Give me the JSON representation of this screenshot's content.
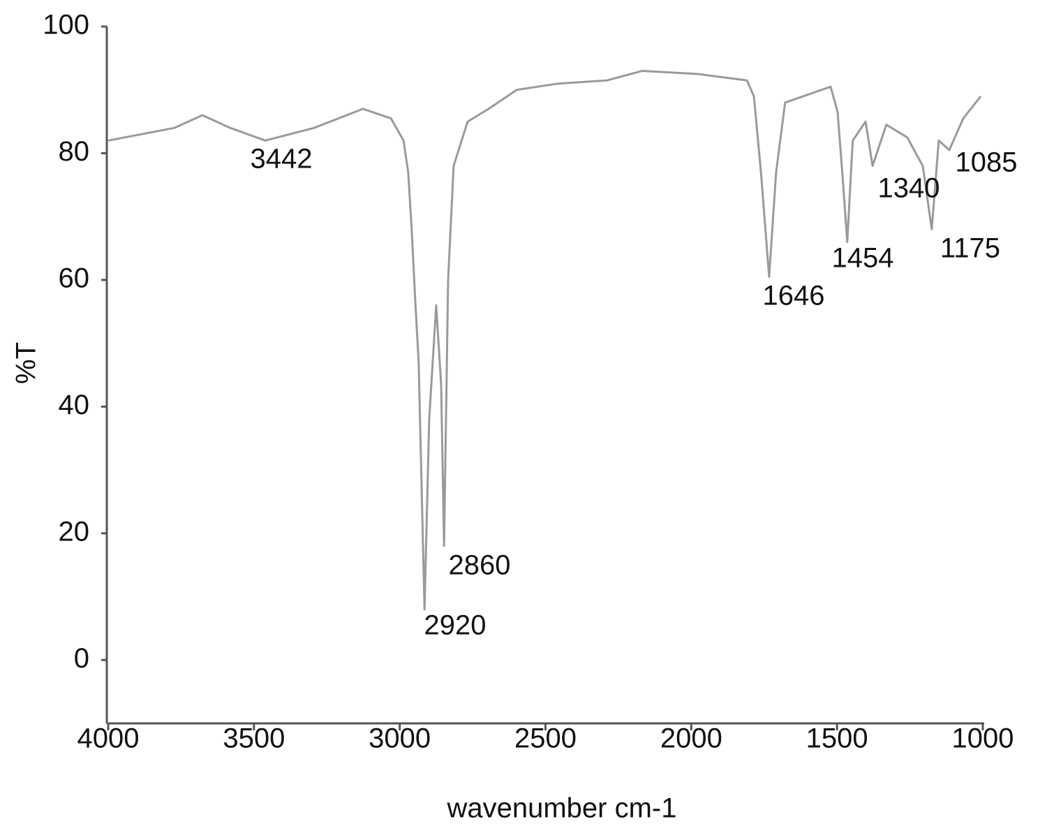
{
  "chart_data": {
    "type": "line",
    "x_label": "wavenumber cm-1",
    "y_label": "%T",
    "xlim": [
      4000,
      1000
    ],
    "ylim": [
      -10,
      100
    ],
    "xticks": [
      4000,
      3500,
      3000,
      2500,
      2000,
      1500,
      1000
    ],
    "yticks": [
      0,
      20,
      40,
      60,
      80,
      100
    ],
    "grid": false,
    "series": [
      {
        "color": "#9a9a9a",
        "x": [
          4000,
          3773,
          3677,
          3581,
          3461,
          3294,
          3126,
          3030,
          2987,
          2971,
          2959,
          2947,
          2935,
          2915,
          2899,
          2875,
          2858,
          2848,
          2834,
          2815,
          2767,
          2695,
          2599,
          2456,
          2288,
          2168,
          1977,
          1809,
          1785,
          1761,
          1733,
          1709,
          1678,
          1522,
          1498,
          1482,
          1465,
          1446,
          1402,
          1378,
          1331,
          1259,
          1206,
          1175,
          1151,
          1115,
          1067,
          1007
        ],
        "values": [
          82,
          84,
          86,
          84,
          82,
          84,
          87,
          85.5,
          82,
          77,
          68,
          57,
          47,
          8,
          38,
          56,
          43.5,
          18,
          60,
          78,
          85,
          87,
          90,
          91,
          91.5,
          93,
          92.5,
          91.5,
          89,
          77,
          60.5,
          77,
          88,
          90.5,
          86.5,
          77,
          66,
          82,
          85,
          78,
          84.5,
          82.5,
          78,
          68,
          82,
          80.5,
          85.5,
          89
        ]
      }
    ],
    "annotations": [
      "3442",
      "2920",
      "2860",
      "1646",
      "1454",
      "1340",
      "1175",
      "1085"
    ]
  }
}
